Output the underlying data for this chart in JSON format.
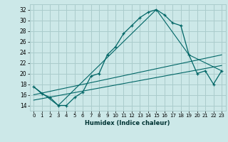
{
  "xlabel": "Humidex (Indice chaleur)",
  "bg_color": "#cce8e8",
  "grid_color": "#aacccc",
  "line_color": "#006666",
  "xlim": [
    -0.5,
    23.5
  ],
  "ylim": [
    13.0,
    33.0
  ],
  "xticks": [
    0,
    1,
    2,
    3,
    4,
    5,
    6,
    7,
    8,
    9,
    10,
    11,
    12,
    13,
    14,
    15,
    16,
    17,
    18,
    19,
    20,
    21,
    22,
    23
  ],
  "yticks": [
    14,
    16,
    18,
    20,
    22,
    24,
    26,
    28,
    30,
    32
  ],
  "line1_x": [
    0,
    1,
    2,
    3,
    4,
    5,
    6,
    7,
    8,
    9,
    10,
    11,
    12,
    13,
    14,
    15,
    16,
    17,
    18,
    19,
    20,
    21,
    22,
    23
  ],
  "line1_y": [
    17.5,
    16.2,
    15.5,
    14.0,
    14.0,
    15.5,
    16.5,
    19.5,
    20.0,
    23.5,
    25.0,
    27.5,
    29.0,
    30.5,
    31.5,
    32.0,
    31.0,
    29.5,
    29.0,
    23.5,
    20.0,
    20.5,
    18.0,
    20.5
  ],
  "line2_x": [
    0,
    3,
    15,
    19,
    23
  ],
  "line2_y": [
    17.5,
    14.0,
    32.0,
    23.5,
    20.5
  ],
  "line3_x": [
    0,
    23
  ],
  "line3_y": [
    15.0,
    21.5
  ],
  "line4_x": [
    0,
    23
  ],
  "line4_y": [
    16.0,
    23.5
  ]
}
